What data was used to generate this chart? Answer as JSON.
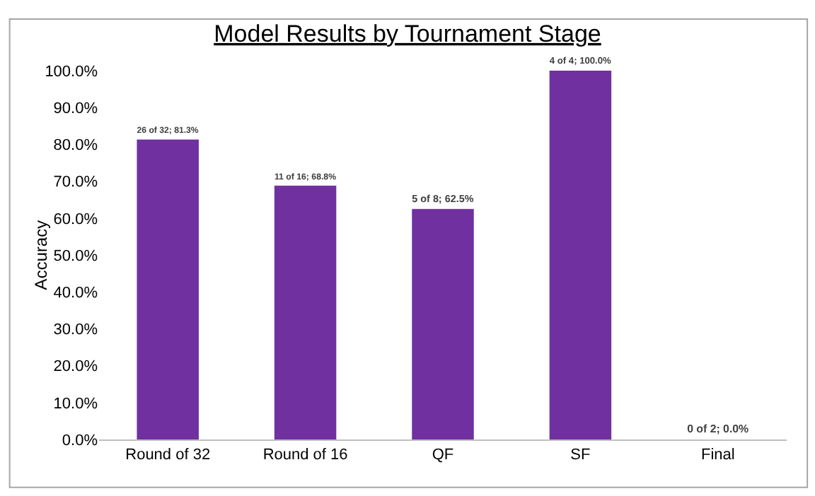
{
  "chart_data": {
    "type": "bar",
    "title": "Model Results by Tournament Stage",
    "ylabel": "Accuracy",
    "categories": [
      "Round of 32",
      "Round of 16",
      "QF",
      "SF",
      "Final"
    ],
    "values": [
      81.3,
      68.8,
      62.5,
      100.0,
      0.0
    ],
    "value_labels": [
      "26 of 32; 81.3%",
      "11 of 16; 68.8%",
      "5 of 8; 62.5%",
      "4 of 4; 100.0%",
      "0 of 2; 0.0%"
    ],
    "color": "#7030a0",
    "ylim": [
      0,
      100
    ],
    "yticks": [
      {
        "value": 0,
        "label": "0.0%"
      },
      {
        "value": 10,
        "label": "10.0%"
      },
      {
        "value": 20,
        "label": "20.0%"
      },
      {
        "value": 30,
        "label": "30.0%"
      },
      {
        "value": 40,
        "label": "40.0%"
      },
      {
        "value": 50,
        "label": "50.0%"
      },
      {
        "value": 60,
        "label": "60.0%"
      },
      {
        "value": 70,
        "label": "70.0%"
      },
      {
        "value": 80,
        "label": "80.0%"
      },
      {
        "value": 90,
        "label": "90.0%"
      },
      {
        "value": 100,
        "label": "100.0%"
      }
    ],
    "legend": false
  }
}
